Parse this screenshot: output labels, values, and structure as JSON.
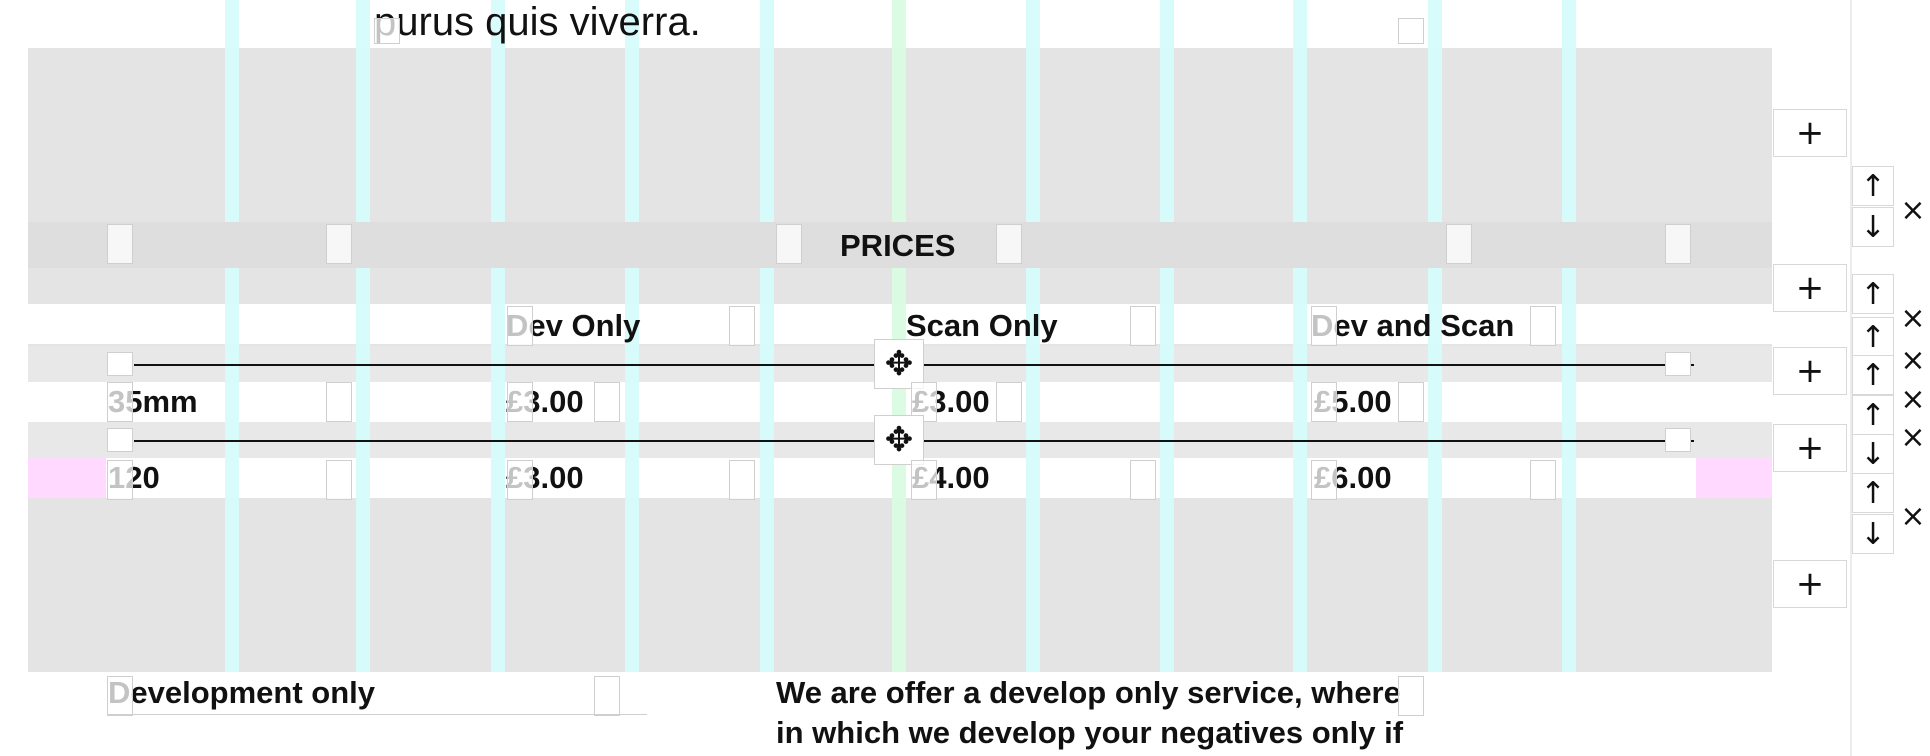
{
  "top_text": "purus quis viverra.",
  "section_heading": "PRICES",
  "table": {
    "headers": [
      "Dev Only",
      "Scan Only",
      "Dev and Scan"
    ],
    "rows": [
      {
        "size": "35mm",
        "dev_only": "£3.00",
        "scan_only": "£3.00",
        "dev_and_scan": "£5.00"
      },
      {
        "size": "120",
        "dev_only": "£3.00",
        "scan_only": "£4.00",
        "dev_and_scan": "£6.00"
      }
    ]
  },
  "bottom": {
    "left_heading": "Development only",
    "right_line_1": "We are offer a develop only service, where",
    "right_line_2": "in which we develop your negatives only if"
  },
  "controls": {
    "plus": "+",
    "up": "↑",
    "down": "↓",
    "close": "×",
    "move": "✥"
  },
  "colors": {
    "gray_band": "#e4e4e4",
    "cyan_grid": "#d6fbfb",
    "green_grid": "#d9fbe0",
    "pink_margin": "#ffd9ff"
  }
}
